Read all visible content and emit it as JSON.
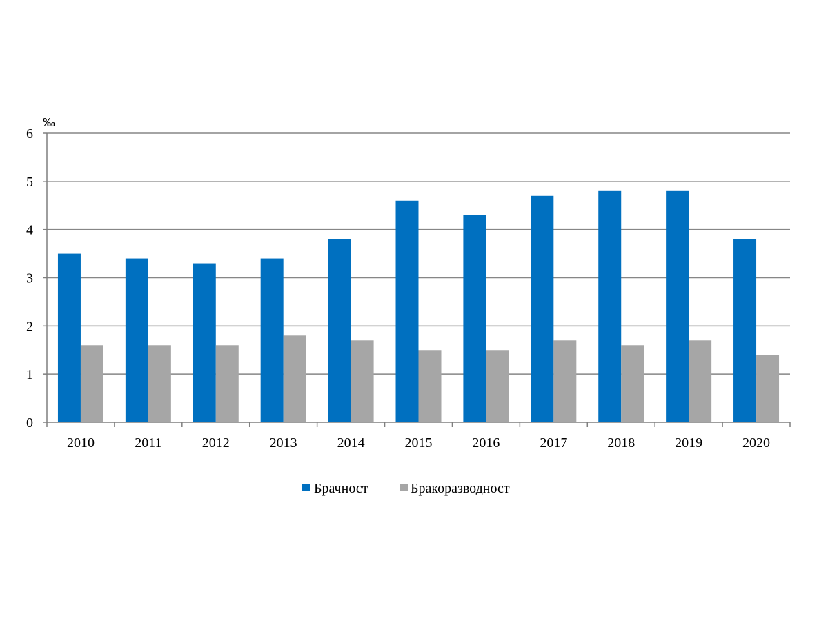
{
  "chart_data": {
    "type": "bar",
    "unit_label": "‰",
    "categories": [
      "2010",
      "2011",
      "2012",
      "2013",
      "2014",
      "2015",
      "2016",
      "2017",
      "2018",
      "2019",
      "2020"
    ],
    "series": [
      {
        "name": "Брачност",
        "color": "#0070c0",
        "values": [
          3.5,
          3.4,
          3.3,
          3.4,
          3.8,
          4.6,
          4.3,
          4.7,
          4.8,
          4.8,
          3.8
        ]
      },
      {
        "name": "Бракоразводност",
        "color": "#a6a6a6",
        "values": [
          1.6,
          1.6,
          1.6,
          1.8,
          1.7,
          1.5,
          1.5,
          1.7,
          1.6,
          1.7,
          1.4
        ]
      }
    ],
    "ylim": [
      0,
      6
    ],
    "yticks": [
      "0",
      "1",
      "2",
      "3",
      "4",
      "5",
      "6"
    ],
    "grid": true,
    "legend_position": "bottom"
  }
}
